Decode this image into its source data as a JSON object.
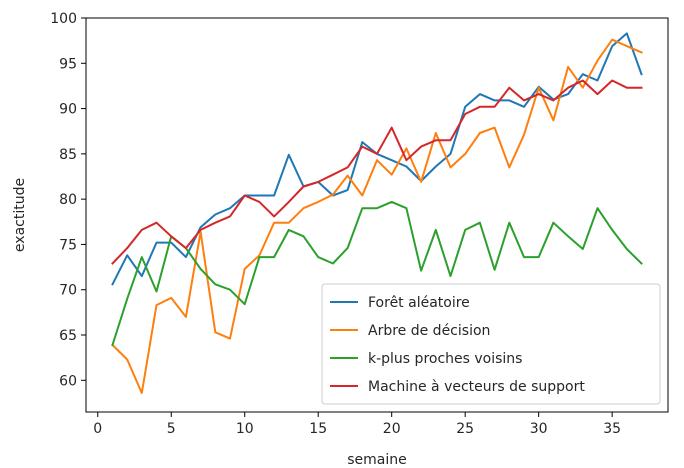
{
  "chart_data": {
    "type": "line",
    "title": "",
    "xlabel": "semaine",
    "ylabel": "exactitude",
    "xlim": [
      -0.8,
      38.8
    ],
    "ylim": [
      56.5,
      100
    ],
    "xticks": [
      0,
      5,
      10,
      15,
      20,
      25,
      30,
      35
    ],
    "yticks": [
      60,
      65,
      70,
      75,
      80,
      85,
      90,
      95,
      100
    ],
    "grid": false,
    "legend_position": "lower-right",
    "x": [
      1,
      2,
      3,
      4,
      5,
      6,
      7,
      8,
      9,
      10,
      11,
      12,
      13,
      14,
      15,
      16,
      17,
      18,
      19,
      20,
      21,
      22,
      23,
      24,
      25,
      26,
      27,
      28,
      29,
      30,
      31,
      32,
      33,
      34,
      35,
      36,
      37
    ],
    "series": [
      {
        "name": "Forêt aléatoire",
        "color": "#1f77b4",
        "values": [
          70.6,
          73.8,
          71.5,
          75.2,
          75.2,
          73.6,
          76.9,
          78.3,
          79.0,
          80.4,
          80.4,
          80.4,
          84.9,
          81.4,
          81.9,
          80.4,
          81.0,
          86.3,
          85.0,
          84.3,
          83.6,
          82.0,
          83.6,
          85.0,
          90.2,
          91.6,
          90.9,
          90.9,
          90.2,
          92.4,
          91.0,
          91.6,
          93.8,
          93.1,
          96.9,
          98.3,
          93.8
        ]
      },
      {
        "name": "Arbre de décision",
        "color": "#ff7f0e",
        "values": [
          63.9,
          62.3,
          58.6,
          68.3,
          69.1,
          67.0,
          76.4,
          65.3,
          64.6,
          72.3,
          73.8,
          77.4,
          77.4,
          79.0,
          79.7,
          80.5,
          82.6,
          80.4,
          84.3,
          82.7,
          85.6,
          81.9,
          87.3,
          83.5,
          85.0,
          87.3,
          87.9,
          83.5,
          87.1,
          92.3,
          88.7,
          94.6,
          92.3,
          95.3,
          97.6,
          96.9,
          96.2
        ]
      },
      {
        "name": "k-plus proches voisins",
        "color": "#2ca02c",
        "values": [
          63.9,
          69.0,
          73.6,
          69.8,
          75.9,
          74.6,
          72.3,
          70.6,
          70.0,
          68.4,
          73.6,
          73.6,
          76.6,
          75.9,
          73.6,
          72.9,
          74.6,
          79.0,
          79.0,
          79.7,
          79.0,
          72.1,
          76.6,
          71.5,
          76.6,
          77.4,
          72.2,
          77.4,
          73.6,
          73.6,
          77.4,
          75.9,
          74.5,
          79.0,
          76.6,
          74.5,
          72.9
        ]
      },
      {
        "name": "Machine à vecteurs de support",
        "color": "#d62728",
        "values": [
          72.9,
          74.6,
          76.6,
          77.4,
          75.9,
          74.6,
          76.6,
          77.4,
          78.1,
          80.4,
          79.7,
          78.1,
          79.7,
          81.4,
          81.9,
          82.7,
          83.5,
          85.8,
          85.0,
          87.9,
          84.3,
          85.8,
          86.5,
          86.5,
          89.4,
          90.2,
          90.2,
          92.3,
          90.9,
          91.6,
          90.9,
          92.3,
          93.1,
          91.6,
          93.1,
          92.3,
          92.3
        ]
      }
    ]
  }
}
